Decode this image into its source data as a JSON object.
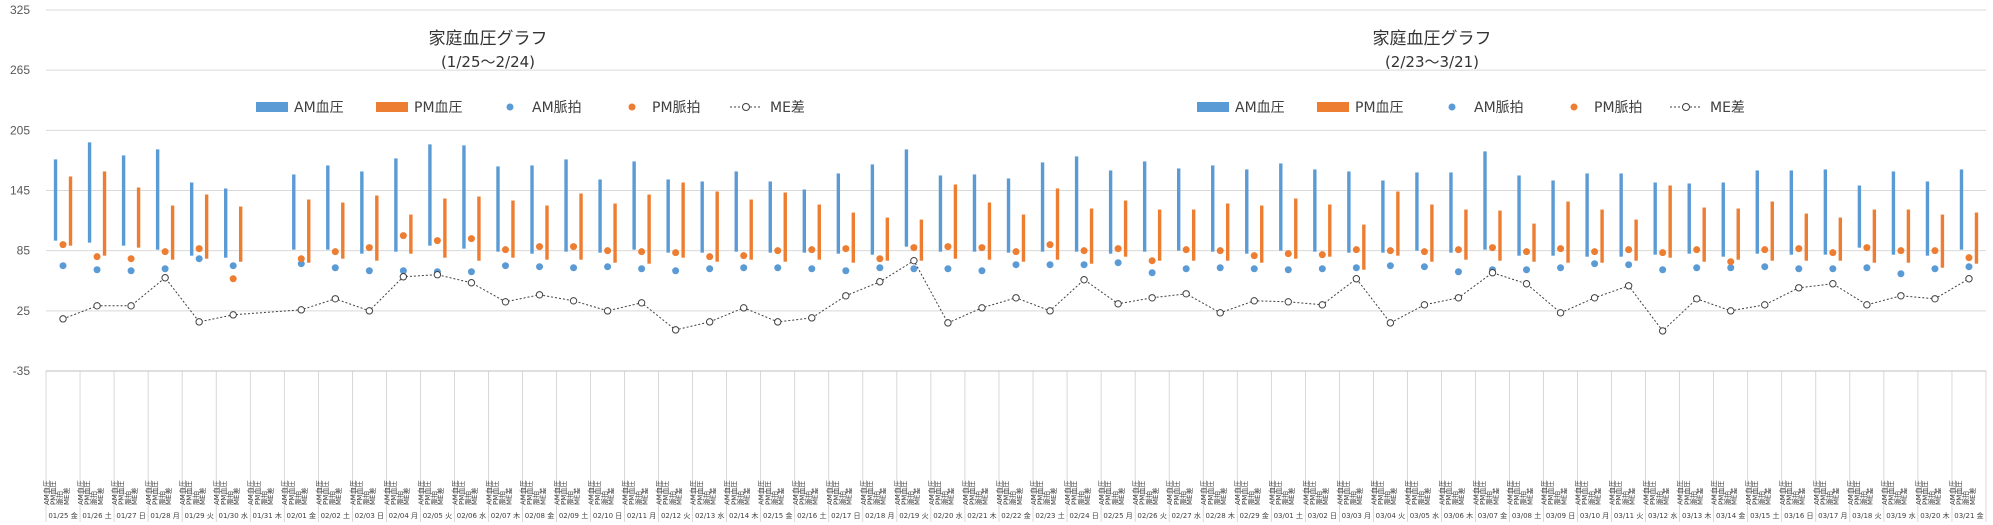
{
  "chart_data": {
    "type": "bar",
    "ylim": [
      -35,
      325
    ],
    "yticks": [
      -35,
      25,
      85,
      145,
      205,
      265,
      325
    ],
    "colors": {
      "am_bp": "#5B9BD5",
      "pm_bp": "#ED7D31",
      "am_pulse": "#5B9BD5",
      "pm_pulse": "#ED7D31",
      "me_line": "#404040"
    },
    "titles": [
      {
        "title": "家庭血圧グラフ",
        "subtitle": "(1/25～2/24)"
      },
      {
        "title": "家庭血圧グラフ",
        "subtitle": "(2/23～3/21)"
      }
    ],
    "legend": [
      "AM血圧",
      "PM血圧",
      "AM脈拍",
      "PM脈拍",
      "ME差"
    ],
    "row_labels": {
      "am": "AM血圧",
      "pm": "PM血圧",
      "pulse": "脈拍",
      "me": "ME差"
    },
    "categories": [
      "01/25 金",
      "01/26 土",
      "01/27 日",
      "01/28 月",
      "01/29 火",
      "01/30 水",
      "01/31 木",
      "02/01 金",
      "02/02 土",
      "02/03 日",
      "02/04 月",
      "02/05 火",
      "02/06 水",
      "02/07 木",
      "02/08 金",
      "02/09 土",
      "02/10 日",
      "02/11 月",
      "02/12 火",
      "02/13 水",
      "02/14 木",
      "02/15 金",
      "02/16 土",
      "02/17 日",
      "02/18 月",
      "02/19 火",
      "02/20 水",
      "02/21 木",
      "02/22 金",
      "02/23 土",
      "02/24 日",
      "02/25 月",
      "02/26 火",
      "02/27 水",
      "02/28 木",
      "02/29 金",
      "03/01 土",
      "03/02 日",
      "03/03 月",
      "03/04 火",
      "03/05 水",
      "03/06 木",
      "03/07 金",
      "03/08 土",
      "03/09 日",
      "03/10 月",
      "03/11 火",
      "03/12 水",
      "03/13 木",
      "03/14 金",
      "03/15 土",
      "03/16 日",
      "03/17 月",
      "03/18 火",
      "03/19 水",
      "03/20 木",
      "03/21 金"
    ],
    "am_bp": [
      [
        95,
        176
      ],
      [
        93,
        193
      ],
      [
        90,
        180
      ],
      [
        86,
        186
      ],
      [
        80,
        153
      ],
      [
        78,
        147
      ],
      [
        null,
        null
      ],
      [
        86,
        161
      ],
      [
        86,
        170
      ],
      [
        82,
        164
      ],
      [
        84,
        177
      ],
      [
        90,
        191
      ],
      [
        87,
        190
      ],
      [
        84,
        169
      ],
      [
        82,
        170
      ],
      [
        84,
        176
      ],
      [
        83,
        156
      ],
      [
        86,
        174
      ],
      [
        83,
        156
      ],
      [
        83,
        154
      ],
      [
        84,
        164
      ],
      [
        83,
        154
      ],
      [
        83,
        146
      ],
      [
        82,
        162
      ],
      [
        81,
        171
      ],
      [
        89,
        186
      ],
      [
        84,
        160
      ],
      [
        84,
        161
      ],
      [
        83,
        157
      ],
      [
        84,
        173
      ],
      [
        84,
        179
      ],
      [
        82,
        165
      ],
      [
        84,
        174
      ],
      [
        85,
        167
      ],
      [
        84,
        170
      ],
      [
        82,
        166
      ],
      [
        85,
        172
      ],
      [
        84,
        166
      ],
      [
        83,
        164
      ],
      [
        83,
        155
      ],
      [
        85,
        163
      ],
      [
        83,
        163
      ],
      [
        86,
        184
      ],
      [
        80,
        160
      ],
      [
        80,
        155
      ],
      [
        79,
        162
      ],
      [
        79,
        162
      ],
      [
        81,
        153
      ],
      [
        82,
        152
      ],
      [
        79,
        153
      ],
      [
        82,
        165
      ],
      [
        81,
        165
      ],
      [
        81,
        166
      ],
      [
        88,
        150
      ],
      [
        81,
        164
      ],
      [
        80,
        154
      ],
      [
        86,
        166
      ]
    ],
    "pm_bp": [
      [
        90,
        159
      ],
      [
        80,
        164
      ],
      [
        88,
        148
      ],
      [
        76,
        130
      ],
      [
        77,
        141
      ],
      [
        74,
        129
      ],
      [
        null,
        null
      ],
      [
        73,
        136
      ],
      [
        77,
        133
      ],
      [
        75,
        140
      ],
      [
        82,
        121
      ],
      [
        78,
        137
      ],
      [
        75,
        139
      ],
      [
        78,
        135
      ],
      [
        76,
        130
      ],
      [
        76,
        142
      ],
      [
        73,
        132
      ],
      [
        72,
        141
      ],
      [
        78,
        153
      ],
      [
        74,
        144
      ],
      [
        76,
        136
      ],
      [
        74,
        143
      ],
      [
        76,
        131
      ],
      [
        73,
        123
      ],
      [
        75,
        118
      ],
      [
        75,
        116
      ],
      [
        77,
        151
      ],
      [
        76,
        133
      ],
      [
        74,
        121
      ],
      [
        76,
        147
      ],
      [
        72,
        127
      ],
      [
        79,
        135
      ],
      [
        75,
        126
      ],
      [
        75,
        126
      ],
      [
        75,
        132
      ],
      [
        73,
        130
      ],
      [
        77,
        137
      ],
      [
        79,
        131
      ],
      [
        66,
        111
      ],
      [
        80,
        144
      ],
      [
        74,
        131
      ],
      [
        76,
        126
      ],
      [
        75,
        125
      ],
      [
        74,
        112
      ],
      [
        73,
        134
      ],
      [
        73,
        126
      ],
      [
        75,
        116
      ],
      [
        78,
        150
      ],
      [
        74,
        128
      ],
      [
        76,
        127
      ],
      [
        75,
        134
      ],
      [
        75,
        122
      ],
      [
        75,
        118
      ],
      [
        73,
        126
      ],
      [
        73,
        126
      ],
      [
        68,
        121
      ],
      [
        72,
        123
      ]
    ],
    "am_pulse": [
      70,
      66,
      65,
      67,
      77,
      70,
      null,
      72,
      68,
      65,
      65,
      64,
      64,
      70,
      69,
      68,
      69,
      67,
      65,
      67,
      68,
      68,
      67,
      65,
      68,
      67,
      67,
      65,
      71,
      71,
      71,
      73,
      63,
      67,
      68,
      67,
      66,
      67,
      68,
      70,
      69,
      64,
      66,
      66,
      68,
      72,
      71,
      66,
      68,
      68,
      69,
      67,
      67,
      68,
      62,
      67,
      69
    ],
    "pm_pulse": [
      91,
      79,
      77,
      84,
      87,
      57,
      null,
      77,
      84,
      88,
      100,
      95,
      97,
      86,
      89,
      89,
      85,
      84,
      83,
      79,
      80,
      85,
      86,
      87,
      77,
      88,
      89,
      88,
      84,
      91,
      85,
      87,
      75,
      86,
      85,
      80,
      82,
      81,
      86,
      85,
      84,
      86,
      88,
      84,
      87,
      84,
      86,
      83,
      86,
      74,
      86,
      87,
      83,
      88,
      85,
      85,
      78
    ],
    "me_diff": [
      17,
      30,
      30,
      58,
      14,
      21,
      null,
      26,
      37,
      25,
      59,
      61,
      53,
      34,
      41,
      35,
      25,
      33,
      6,
      14,
      28,
      14,
      18,
      40,
      54,
      75,
      13,
      28,
      38,
      25,
      56,
      32,
      38,
      42,
      23,
      35,
      34,
      31,
      57,
      13,
      31,
      38,
      63,
      52,
      23,
      38,
      50,
      5,
      37,
      25,
      31,
      48,
      52,
      31,
      40,
      37,
      57
    ]
  }
}
